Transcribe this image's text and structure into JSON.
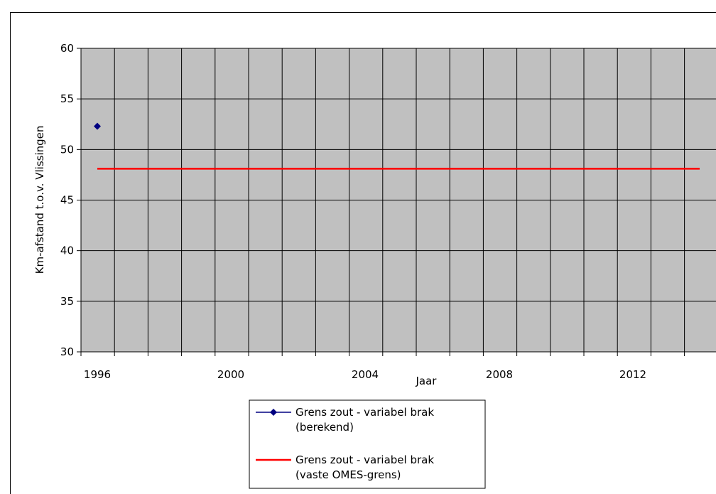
{
  "chart_data": {
    "type": "line",
    "xlabel": "Jaar",
    "ylabel": "Km-afstand t.o.v. Vlissingen",
    "xlim": [
      1996,
      2014
    ],
    "ylim": [
      30,
      60
    ],
    "yticks": [
      30,
      35,
      40,
      45,
      50,
      55,
      60
    ],
    "xtick_labels": [
      "1996",
      "2000",
      "2004",
      "2008",
      "2012"
    ],
    "grid": true,
    "plot_background": "#c0c0c0",
    "series": [
      {
        "name": "Grens zout - variabel brak (berekend)",
        "name_lines": [
          "Grens zout - variabel brak",
          "(berekend)"
        ],
        "marker": "diamond",
        "color": "#000080",
        "points": [
          {
            "x": 1996,
            "y": 52.3
          }
        ]
      },
      {
        "name": "Grens zout - variabel brak (vaste OMES-grens)",
        "name_lines": [
          "Grens zout - variabel brak",
          "(vaste OMES-grens)"
        ],
        "marker": "none",
        "color": "#ff0000",
        "points": [
          {
            "x": 1996,
            "y": 48.1
          },
          {
            "x": 2014,
            "y": 48.1
          }
        ]
      }
    ],
    "legend_position": "bottom-center"
  }
}
